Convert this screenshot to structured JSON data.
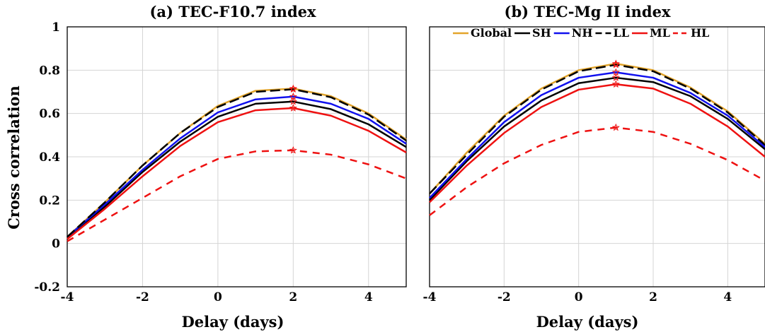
{
  "chart_data": [
    {
      "type": "line",
      "title": "(a) TEC-F10.7 index",
      "xlabel": "Delay (days)",
      "ylabel": "Cross correlation",
      "xlim": [
        -4,
        5
      ],
      "ylim": [
        -0.2,
        1
      ],
      "grid": true,
      "x": [
        -4,
        -3,
        -2,
        -1,
        0,
        1,
        2,
        3,
        4,
        5
      ],
      "xticks": [
        "-4",
        "-2",
        "0",
        "2",
        "4"
      ],
      "yticks": [
        "-0.2",
        "0",
        "0.2",
        "0.4",
        "0.6",
        "0.8",
        "1"
      ],
      "series": [
        {
          "name": "Global",
          "color": "#E3A52B",
          "dash": "solid",
          "values": [
            0.03,
            0.19,
            0.36,
            0.51,
            0.635,
            0.705,
            0.715,
            0.68,
            0.6,
            0.48
          ],
          "marker_index": 6
        },
        {
          "name": "SH",
          "color": "#000000",
          "dash": "solid",
          "values": [
            0.03,
            0.17,
            0.33,
            0.47,
            0.585,
            0.645,
            0.655,
            0.62,
            0.55,
            0.445
          ],
          "marker_index": 6
        },
        {
          "name": "NH",
          "color": "#1010EE",
          "dash": "solid",
          "values": [
            0.03,
            0.18,
            0.34,
            0.485,
            0.605,
            0.665,
            0.678,
            0.645,
            0.575,
            0.46
          ],
          "marker_index": 6
        },
        {
          "name": "LL",
          "color": "#000000",
          "dash": "longdash",
          "values": [
            0.03,
            0.19,
            0.36,
            0.51,
            0.63,
            0.7,
            0.712,
            0.675,
            0.595,
            0.475
          ],
          "marker_index": 6
        },
        {
          "name": "ML",
          "color": "#EE1111",
          "dash": "solid",
          "values": [
            0.02,
            0.16,
            0.31,
            0.45,
            0.56,
            0.615,
            0.625,
            0.59,
            0.52,
            0.42
          ],
          "marker_index": 6
        },
        {
          "name": "HL",
          "color": "#EE1111",
          "dash": "dashed",
          "values": [
            0.01,
            0.11,
            0.21,
            0.31,
            0.39,
            0.425,
            0.43,
            0.41,
            0.365,
            0.3
          ],
          "marker_index": 6
        }
      ]
    },
    {
      "type": "line",
      "title": "(b) TEC-Mg II index",
      "xlabel": "Delay (days)",
      "ylabel": "",
      "xlim": [
        -4,
        5
      ],
      "ylim": [
        -0.2,
        1
      ],
      "grid": true,
      "legend": "top",
      "x": [
        -4,
        -3,
        -2,
        -1,
        0,
        1,
        2,
        3,
        4,
        5
      ],
      "xticks": [
        "-4",
        "-2",
        "0",
        "2",
        "4"
      ],
      "yticks": [],
      "series": [
        {
          "name": "Global",
          "color": "#E3A52B",
          "dash": "solid",
          "values": [
            0.23,
            0.42,
            0.59,
            0.715,
            0.8,
            0.83,
            0.8,
            0.72,
            0.61,
            0.46
          ],
          "marker_index": 5
        },
        {
          "name": "SH",
          "color": "#000000",
          "dash": "solid",
          "values": [
            0.2,
            0.38,
            0.54,
            0.66,
            0.74,
            0.765,
            0.745,
            0.68,
            0.575,
            0.435
          ],
          "marker_index": 5
        },
        {
          "name": "NH",
          "color": "#1010EE",
          "dash": "solid",
          "values": [
            0.21,
            0.39,
            0.56,
            0.685,
            0.765,
            0.79,
            0.765,
            0.695,
            0.59,
            0.445
          ],
          "marker_index": 5
        },
        {
          "name": "LL",
          "color": "#000000",
          "dash": "longdash",
          "values": [
            0.23,
            0.41,
            0.585,
            0.71,
            0.795,
            0.825,
            0.795,
            0.715,
            0.605,
            0.455
          ],
          "marker_index": 5
        },
        {
          "name": "ML",
          "color": "#EE1111",
          "dash": "solid",
          "values": [
            0.19,
            0.36,
            0.51,
            0.63,
            0.71,
            0.735,
            0.715,
            0.645,
            0.54,
            0.4
          ],
          "marker_index": 5
        },
        {
          "name": "HL",
          "color": "#EE1111",
          "dash": "dashed",
          "values": [
            0.13,
            0.26,
            0.37,
            0.455,
            0.515,
            0.535,
            0.515,
            0.46,
            0.385,
            0.29
          ],
          "marker_index": 5
        }
      ]
    }
  ]
}
